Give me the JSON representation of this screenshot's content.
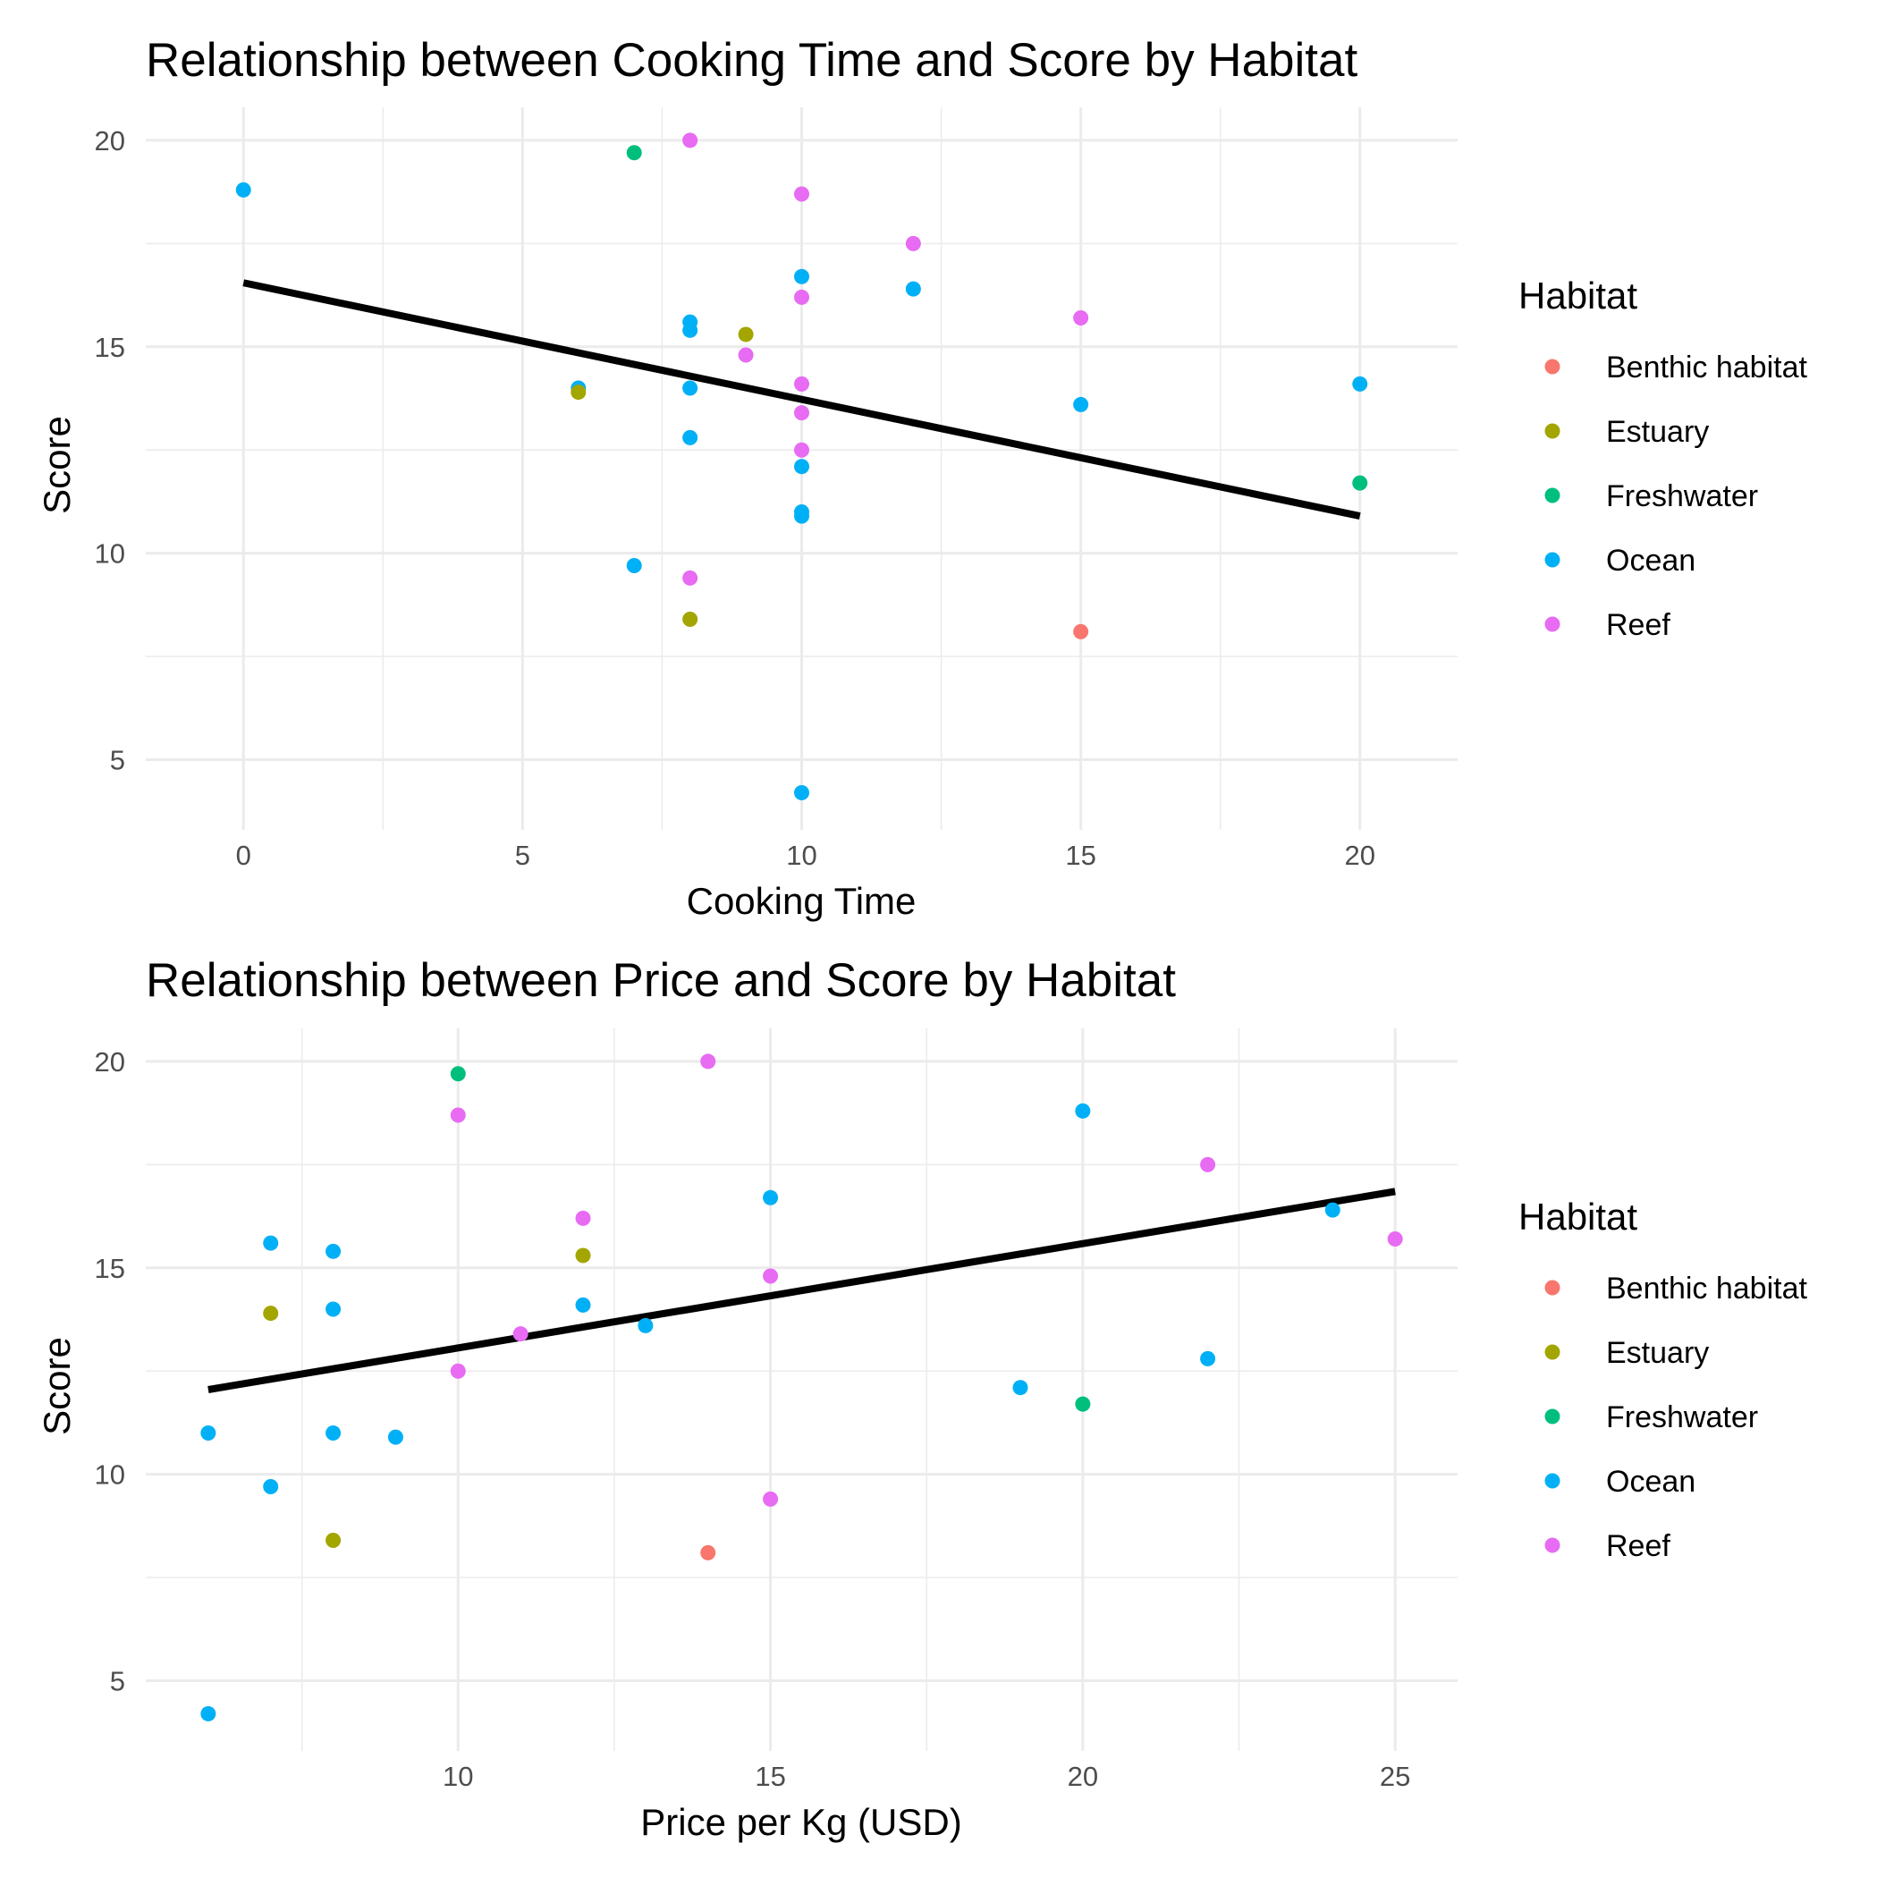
{
  "chart_data": [
    {
      "type": "scatter",
      "title": "Relationship between Cooking Time and Score by Habitat",
      "xlabel": "Cooking Time",
      "ylabel": "Score",
      "xlim": [
        -1.75,
        21.75
      ],
      "ylim": [
        3.3,
        20.8
      ],
      "x_ticks": [
        0,
        5,
        10,
        15,
        20
      ],
      "y_ticks": [
        5,
        10,
        15,
        20
      ],
      "grid": true,
      "legend_title": "Habitat",
      "legend_position": "right",
      "categories": [
        "Benthic habitat",
        "Estuary",
        "Freshwater",
        "Ocean",
        "Reef"
      ],
      "colors": {
        "Benthic habitat": "#F8766D",
        "Estuary": "#A3A500",
        "Freshwater": "#00BF7D",
        "Ocean": "#00B0F6",
        "Reef": "#E76BF3"
      },
      "trend_line": {
        "x": [
          0,
          20
        ],
        "y": [
          16.55,
          10.9
        ]
      },
      "points": [
        {
          "x": 0,
          "y": 18.8,
          "group": "Ocean"
        },
        {
          "x": 7,
          "y": 19.7,
          "group": "Freshwater"
        },
        {
          "x": 8,
          "y": 20.0,
          "group": "Reef"
        },
        {
          "x": 10,
          "y": 18.7,
          "group": "Reef"
        },
        {
          "x": 12,
          "y": 17.5,
          "group": "Reef"
        },
        {
          "x": 10,
          "y": 16.7,
          "group": "Ocean"
        },
        {
          "x": 12,
          "y": 16.4,
          "group": "Ocean"
        },
        {
          "x": 10,
          "y": 16.2,
          "group": "Reef"
        },
        {
          "x": 15,
          "y": 15.7,
          "group": "Reef"
        },
        {
          "x": 8,
          "y": 15.6,
          "group": "Ocean"
        },
        {
          "x": 8,
          "y": 15.4,
          "group": "Ocean"
        },
        {
          "x": 9,
          "y": 15.3,
          "group": "Estuary"
        },
        {
          "x": 9,
          "y": 14.8,
          "group": "Reef"
        },
        {
          "x": 6,
          "y": 14.0,
          "group": "Ocean"
        },
        {
          "x": 6,
          "y": 13.9,
          "group": "Estuary"
        },
        {
          "x": 8,
          "y": 14.0,
          "group": "Ocean"
        },
        {
          "x": 10,
          "y": 14.1,
          "group": "Reef"
        },
        {
          "x": 20,
          "y": 14.1,
          "group": "Ocean"
        },
        {
          "x": 15,
          "y": 13.6,
          "group": "Ocean"
        },
        {
          "x": 10,
          "y": 13.4,
          "group": "Reef"
        },
        {
          "x": 8,
          "y": 12.8,
          "group": "Ocean"
        },
        {
          "x": 10,
          "y": 12.5,
          "group": "Reef"
        },
        {
          "x": 10,
          "y": 12.1,
          "group": "Ocean"
        },
        {
          "x": 20,
          "y": 11.7,
          "group": "Freshwater"
        },
        {
          "x": 10,
          "y": 11.0,
          "group": "Ocean"
        },
        {
          "x": 10,
          "y": 10.9,
          "group": "Ocean"
        },
        {
          "x": 7,
          "y": 9.7,
          "group": "Ocean"
        },
        {
          "x": 8,
          "y": 9.4,
          "group": "Reef"
        },
        {
          "x": 8,
          "y": 8.4,
          "group": "Estuary"
        },
        {
          "x": 15,
          "y": 8.1,
          "group": "Benthic habitat"
        },
        {
          "x": 10,
          "y": 4.2,
          "group": "Ocean"
        }
      ]
    },
    {
      "type": "scatter",
      "title": "Relationship between Price and Score by Habitat",
      "xlabel": "Price per Kg (USD)",
      "ylabel": "Score",
      "xlim": [
        5,
        26
      ],
      "ylim": [
        3.3,
        20.8
      ],
      "x_ticks": [
        10,
        15,
        20,
        25
      ],
      "y_ticks": [
        5,
        10,
        15,
        20
      ],
      "grid": true,
      "legend_title": "Habitat",
      "legend_position": "right",
      "categories": [
        "Benthic habitat",
        "Estuary",
        "Freshwater",
        "Ocean",
        "Reef"
      ],
      "colors": {
        "Benthic habitat": "#F8766D",
        "Estuary": "#A3A500",
        "Freshwater": "#00BF7D",
        "Ocean": "#00B0F6",
        "Reef": "#E76BF3"
      },
      "trend_line": {
        "x": [
          6,
          25
        ],
        "y": [
          12.05,
          16.85
        ]
      },
      "points": [
        {
          "x": 14,
          "y": 20.0,
          "group": "Reef"
        },
        {
          "x": 10,
          "y": 19.7,
          "group": "Freshwater"
        },
        {
          "x": 20,
          "y": 18.8,
          "group": "Ocean"
        },
        {
          "x": 10,
          "y": 18.7,
          "group": "Reef"
        },
        {
          "x": 22,
          "y": 17.5,
          "group": "Reef"
        },
        {
          "x": 15,
          "y": 16.7,
          "group": "Ocean"
        },
        {
          "x": 24,
          "y": 16.4,
          "group": "Ocean"
        },
        {
          "x": 12,
          "y": 16.2,
          "group": "Reef"
        },
        {
          "x": 25,
          "y": 15.7,
          "group": "Reef"
        },
        {
          "x": 7,
          "y": 15.6,
          "group": "Ocean"
        },
        {
          "x": 8,
          "y": 15.4,
          "group": "Ocean"
        },
        {
          "x": 12,
          "y": 15.3,
          "group": "Estuary"
        },
        {
          "x": 15,
          "y": 14.8,
          "group": "Reef"
        },
        {
          "x": 12,
          "y": 14.1,
          "group": "Ocean"
        },
        {
          "x": 8,
          "y": 14.0,
          "group": "Ocean"
        },
        {
          "x": 7,
          "y": 13.9,
          "group": "Estuary"
        },
        {
          "x": 13,
          "y": 13.6,
          "group": "Ocean"
        },
        {
          "x": 11,
          "y": 13.4,
          "group": "Reef"
        },
        {
          "x": 22,
          "y": 12.8,
          "group": "Ocean"
        },
        {
          "x": 10,
          "y": 12.5,
          "group": "Reef"
        },
        {
          "x": 19,
          "y": 12.1,
          "group": "Ocean"
        },
        {
          "x": 20,
          "y": 11.7,
          "group": "Freshwater"
        },
        {
          "x": 6,
          "y": 11.0,
          "group": "Ocean"
        },
        {
          "x": 8,
          "y": 11.0,
          "group": "Ocean"
        },
        {
          "x": 9,
          "y": 10.9,
          "group": "Ocean"
        },
        {
          "x": 7,
          "y": 9.7,
          "group": "Ocean"
        },
        {
          "x": 15,
          "y": 9.4,
          "group": "Reef"
        },
        {
          "x": 8,
          "y": 8.4,
          "group": "Estuary"
        },
        {
          "x": 14,
          "y": 8.1,
          "group": "Benthic habitat"
        },
        {
          "x": 6,
          "y": 4.2,
          "group": "Ocean"
        }
      ]
    }
  ]
}
